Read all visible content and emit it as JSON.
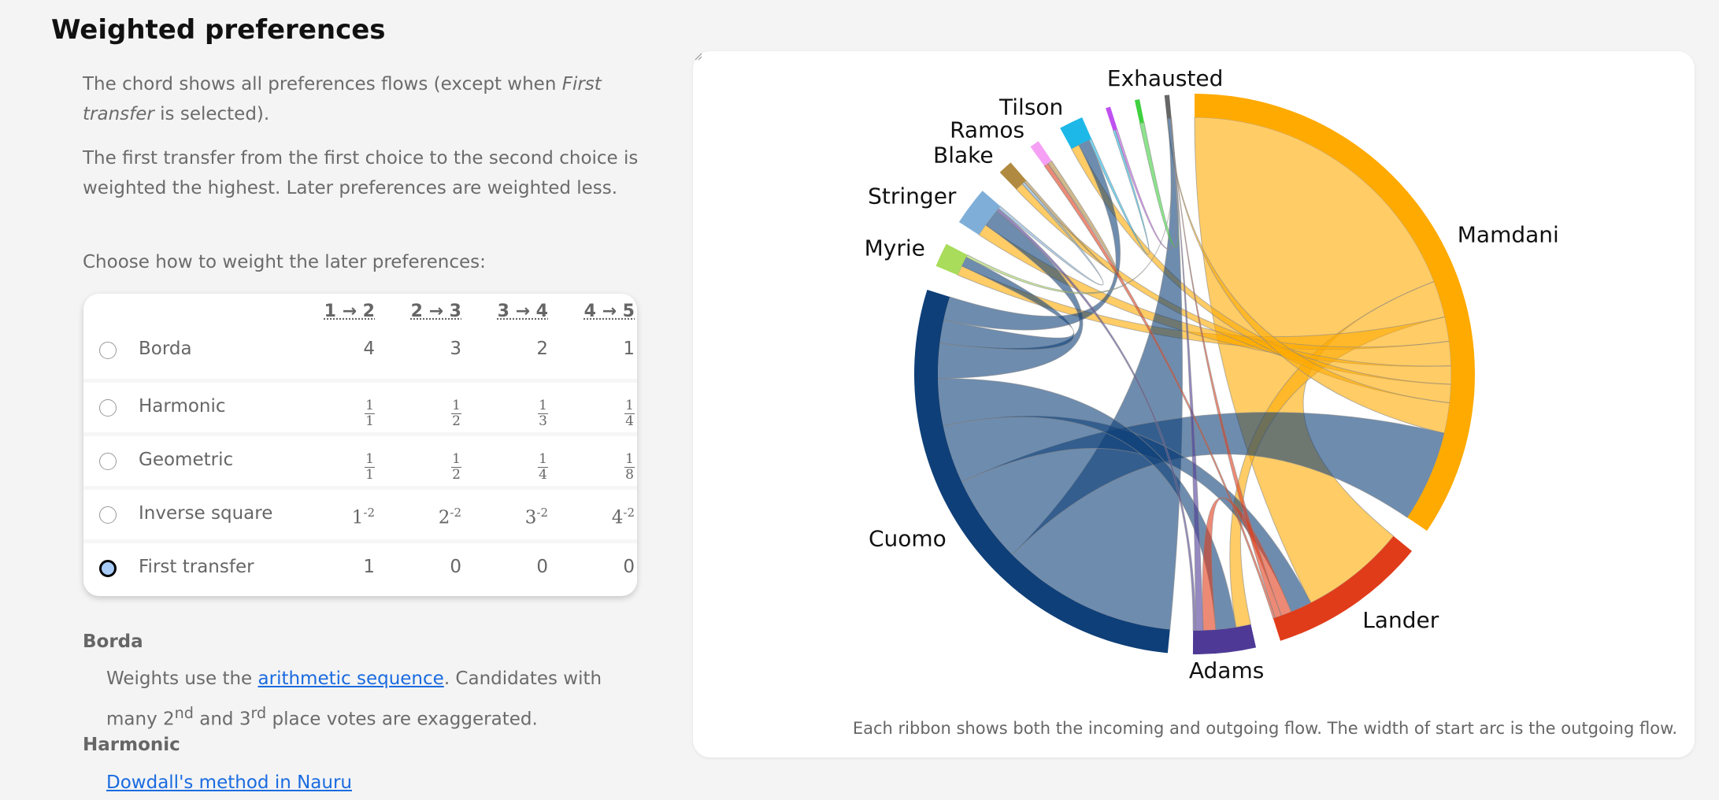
{
  "title": "Weighted preferences",
  "intro": {
    "p1_a": "The chord shows all preferences flows (except when ",
    "p1_em": "First transfer",
    "p1_b": " is selected).",
    "p2": "The first transfer from the first choice to the second choice is weighted the highest. Later preferences are weighted less.",
    "p3": "Choose how to weight the later preferences:"
  },
  "weights_table": {
    "headers": [
      "1 → 2",
      "2 → 3",
      "3 → 4",
      "4 → 5"
    ],
    "rows": [
      {
        "label": "Borda",
        "selected": false,
        "kind": "plain",
        "values": [
          "4",
          "3",
          "2",
          "1"
        ]
      },
      {
        "label": "Harmonic",
        "selected": false,
        "kind": "frac",
        "values": [
          [
            "1",
            "1"
          ],
          [
            "1",
            "2"
          ],
          [
            "1",
            "3"
          ],
          [
            "1",
            "4"
          ]
        ]
      },
      {
        "label": "Geometric",
        "selected": false,
        "kind": "frac",
        "values": [
          [
            "1",
            "1"
          ],
          [
            "1",
            "2"
          ],
          [
            "1",
            "4"
          ],
          [
            "1",
            "8"
          ]
        ]
      },
      {
        "label": "Inverse square",
        "selected": false,
        "kind": "pow",
        "values": [
          [
            "1",
            "-2"
          ],
          [
            "2",
            "-2"
          ],
          [
            "3",
            "-2"
          ],
          [
            "4",
            "-2"
          ]
        ]
      },
      {
        "label": "First transfer",
        "selected": true,
        "kind": "plain",
        "values": [
          "1",
          "0",
          "0",
          "0"
        ]
      }
    ]
  },
  "definitions": {
    "borda_title": "Borda",
    "borda_a": "Weights use the ",
    "borda_link": "arithmetic sequence",
    "borda_b": ". Candidates with many 2",
    "borda_sup1": "nd",
    "borda_c": " and 3",
    "borda_sup2": "rd",
    "borda_d": " place votes are exaggerated.",
    "harmonic_title": "Harmonic",
    "harmonic_link": "Dowdall's method in Nauru"
  },
  "chart_data": {
    "type": "chord",
    "caption": "Each ribbon shows both the incoming and outgoing flow. The width of start arc is the outgoing flow.",
    "nodes": [
      {
        "label": "Mamdani",
        "color": "#FFAA00",
        "value": 124
      },
      {
        "label": "Lander",
        "color": "#E03C1A",
        "value": 33
      },
      {
        "label": "Adams",
        "color": "#4E3A96",
        "value": 13
      },
      {
        "label": "Cuomo",
        "color": "#0E3F78",
        "value": 102
      },
      {
        "label": "Myrie",
        "color": "#A8DC5A",
        "value": 5
      },
      {
        "label": "Stringer",
        "color": "#7FAFD8",
        "value": 8
      },
      {
        "label": "Blake",
        "color": "#B08A40",
        "value": 3
      },
      {
        "label": "Ramos",
        "color": "#F5A0F5",
        "value": 2
      },
      {
        "label": "Tilson",
        "color": "#1DB8E8",
        "value": 5
      },
      {
        "label": null,
        "color": "#C050F0",
        "value": 1
      },
      {
        "label": null,
        "color": "#40D040",
        "value": 1
      },
      {
        "label": "Exhausted",
        "color": "#666666",
        "value": 1
      }
    ],
    "flows": [
      [
        0,
        1,
        50
      ],
      [
        0,
        2,
        6
      ],
      [
        0,
        4,
        4
      ],
      [
        0,
        5,
        4
      ],
      [
        0,
        6,
        3
      ],
      [
        0,
        8,
        3
      ],
      [
        0,
        11,
        5
      ],
      [
        3,
        11,
        30
      ],
      [
        3,
        0,
        15
      ],
      [
        3,
        1,
        10
      ],
      [
        3,
        2,
        8
      ],
      [
        3,
        5,
        6
      ],
      [
        3,
        4,
        4
      ],
      [
        3,
        8,
        4
      ],
      [
        1,
        2,
        5
      ],
      [
        1,
        11,
        3
      ],
      [
        1,
        7,
        1
      ],
      [
        2,
        11,
        3
      ],
      [
        2,
        5,
        1
      ],
      [
        4,
        11,
        1
      ],
      [
        5,
        6,
        1
      ],
      [
        6,
        7,
        1
      ],
      [
        8,
        9,
        1
      ],
      [
        10,
        11,
        1
      ],
      [
        9,
        11,
        1
      ]
    ]
  }
}
